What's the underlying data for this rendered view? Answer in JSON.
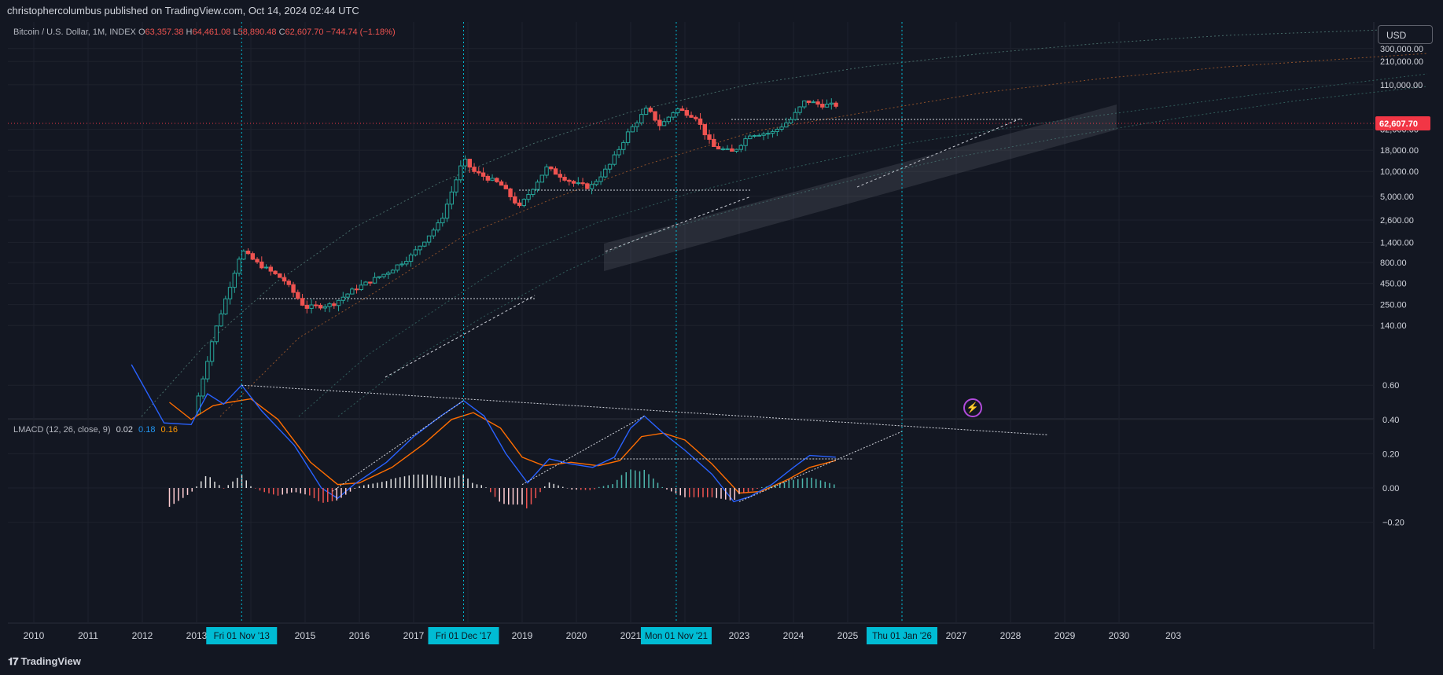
{
  "header": {
    "published_text": "christophercolumbus published on TradingView.com, Oct 14, 2024 02:44 UTC"
  },
  "legend": {
    "symbol": "Bitcoin / U.S. Dollar, 1M, INDEX",
    "o_label": "O",
    "o_value": "63,357.38",
    "h_label": "H",
    "h_value": "64,461.08",
    "l_label": "L",
    "l_value": "58,890.48",
    "c_label": "C",
    "c_value": "62,607.70",
    "change": "−744.74 (−1.18%)"
  },
  "indicator": {
    "name": "LMACD (12, 26, close, 9)",
    "hist_value": "0.02",
    "macd_value": "0.18",
    "signal_value": "0.16"
  },
  "currency_button": "USD",
  "last_price_label": "62,607.70",
  "price_axis_labels": [
    "300,000.00",
    "210,000.00",
    "110,000.00",
    "62,607.70",
    "32,000.00",
    "18,000.00",
    "10,000.00",
    "5,000.00",
    "2,600.00",
    "1,400.00",
    "800.00",
    "450.00",
    "250.00",
    "140.00"
  ],
  "price_axis_values": [
    300000,
    210000,
    110000,
    32000,
    18000,
    10000,
    5000,
    2600,
    1400,
    800,
    450,
    250,
    140
  ],
  "osc_axis_labels": [
    "0.60",
    "0.40",
    "0.20",
    "0.00",
    "−0.20"
  ],
  "osc_axis_values": [
    0.6,
    0.4,
    0.2,
    0,
    -0.2
  ],
  "time_axis_labels": [
    "2010",
    "2011",
    "2012",
    "2013",
    "2015",
    "2016",
    "2017",
    "2019",
    "2020",
    "2021",
    "2023",
    "2024",
    "2025",
    "2027",
    "2028",
    "2029",
    "2030",
    "203"
  ],
  "time_markers": [
    "Fri 01 Nov '13",
    "Fri 01 Dec '17",
    "Mon 01 Nov '21",
    "Thu 01 Jan '26"
  ],
  "brand": "TradingView",
  "colors": {
    "background": "#131722",
    "up": "#26a69a",
    "down": "#ef5350",
    "macd": "#2962ff",
    "signal": "#ff6d00",
    "marker": "#00bcd4",
    "last_price": "#f23645"
  },
  "chart_data": {
    "type": "candlestick",
    "scale": "log",
    "series_monthly_closes_approx": [
      {
        "date": "2012-12",
        "close": 13
      },
      {
        "date": "2013-11",
        "close": 1130
      },
      {
        "date": "2015-01",
        "close": 220
      },
      {
        "date": "2017-12",
        "close": 14000
      },
      {
        "date": "2018-12",
        "close": 3700
      },
      {
        "date": "2021-11",
        "close": 57000
      },
      {
        "date": "2022-11",
        "close": 17000
      },
      {
        "date": "2024-03",
        "close": 71300
      },
      {
        "date": "2024-10",
        "close": 62607.7
      }
    ],
    "indicator": {
      "name": "LMACD",
      "macd_peaks": [
        {
          "date": "2013-11",
          "value": 0.6
        },
        {
          "date": "2017-12",
          "value": 0.51
        },
        {
          "date": "2021-04",
          "value": 0.42
        },
        {
          "date": "2024-06",
          "value": 0.19
        }
      ]
    }
  }
}
